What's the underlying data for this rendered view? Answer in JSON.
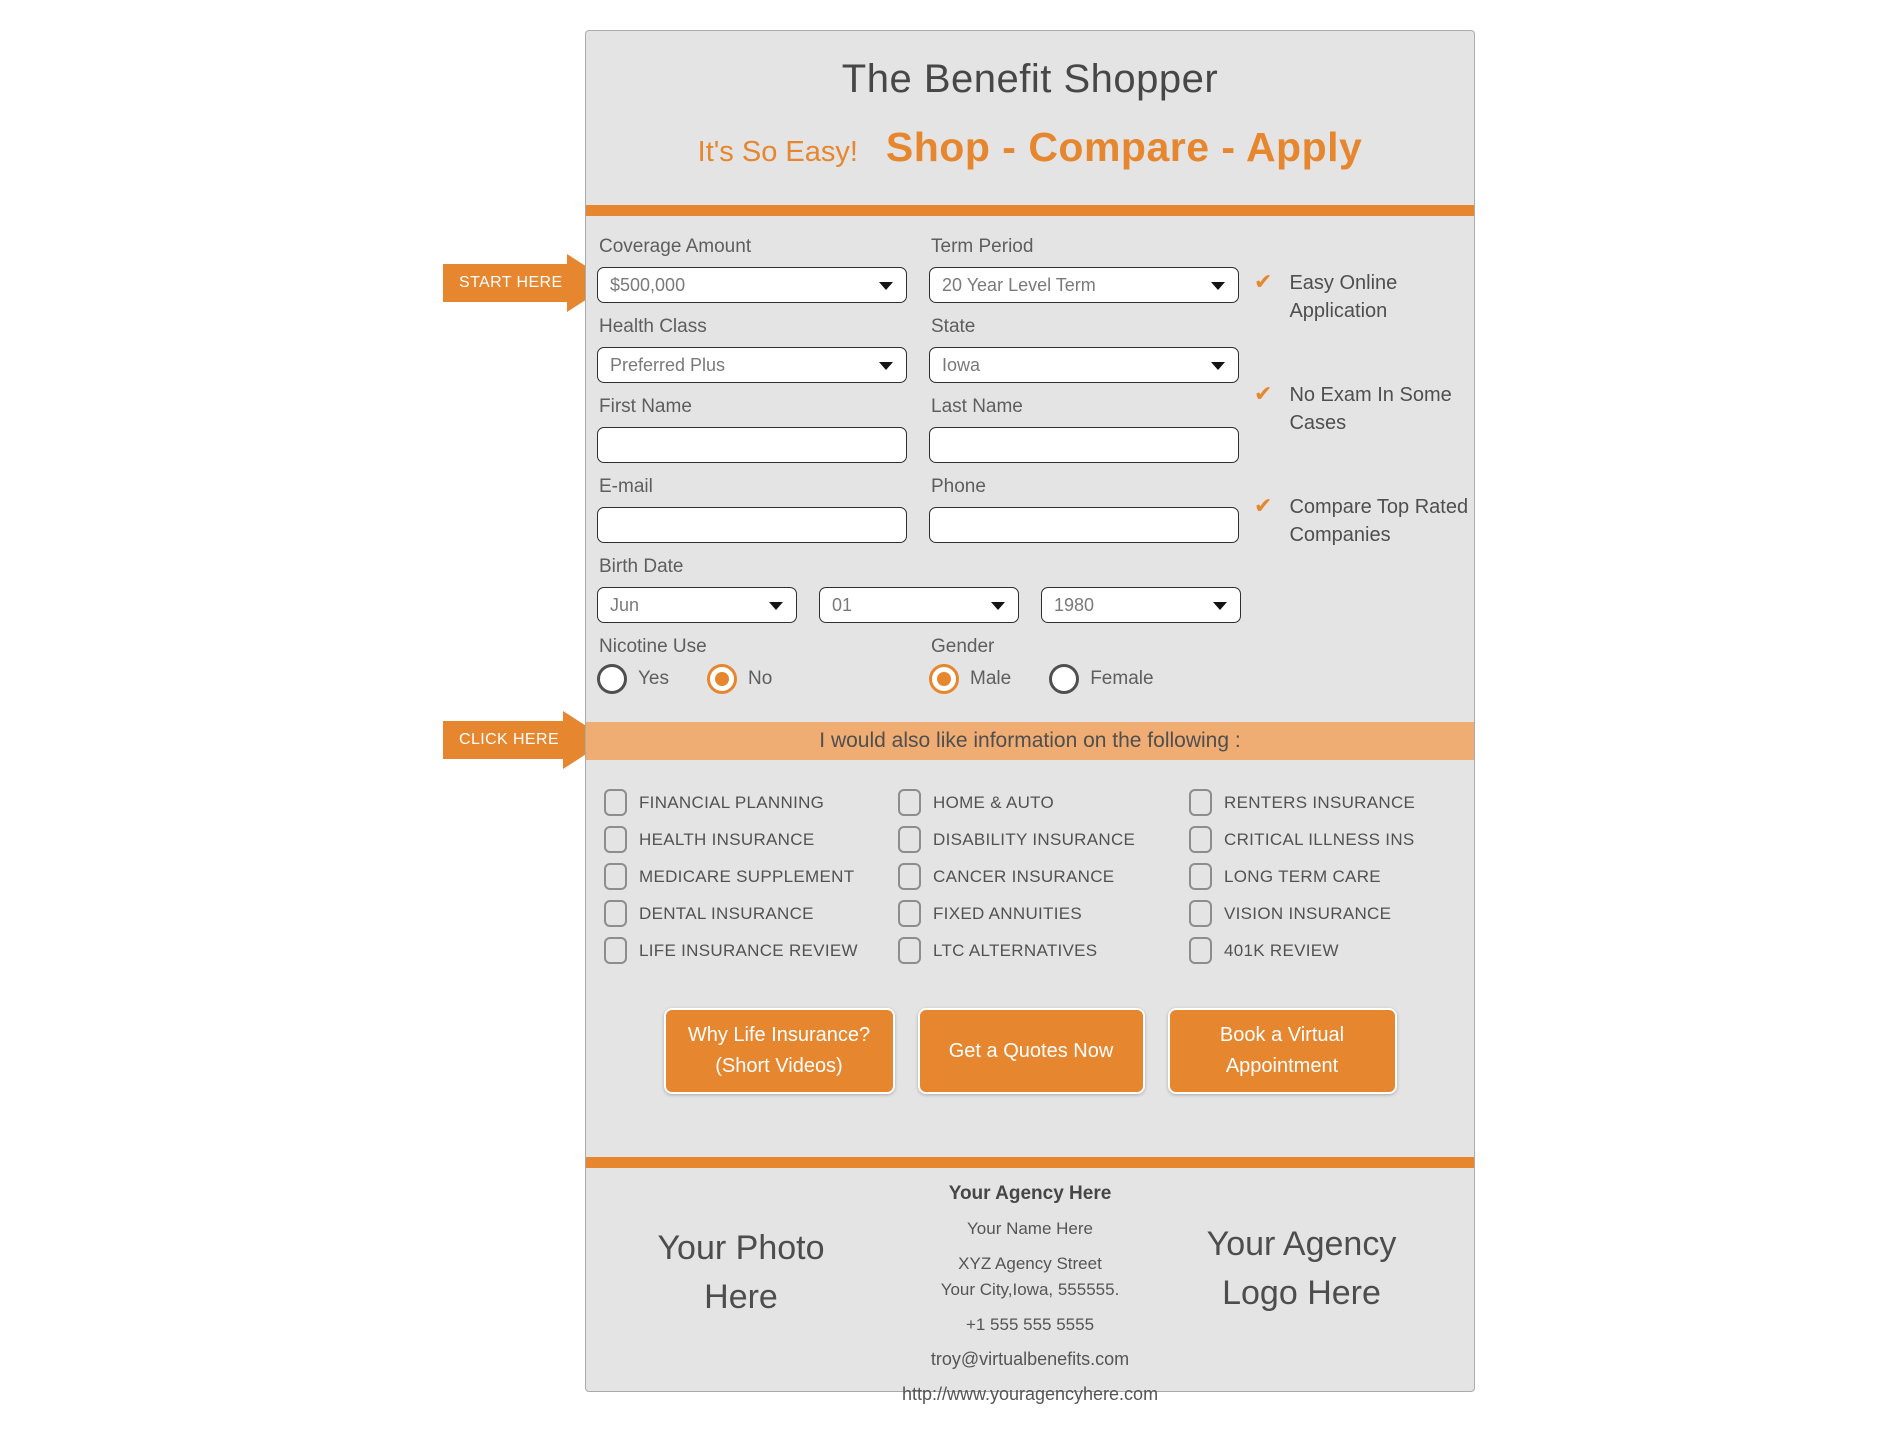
{
  "header": {
    "title": "The Benefit Shopper",
    "tagline_left": "It's So Easy!",
    "tagline_right": "Shop - Compare - Apply"
  },
  "arrows": {
    "start": "START HERE",
    "click": "CLICK HERE"
  },
  "form": {
    "coverage": {
      "label": "Coverage Amount",
      "value": "$500,000"
    },
    "term": {
      "label": "Term Period",
      "value": "20 Year Level Term"
    },
    "health": {
      "label": "Health Class",
      "value": "Preferred Plus"
    },
    "state": {
      "label": "State",
      "value": "Iowa"
    },
    "first_name": {
      "label": "First Name",
      "value": ""
    },
    "last_name": {
      "label": "Last Name",
      "value": ""
    },
    "email": {
      "label": "E-mail",
      "value": ""
    },
    "phone": {
      "label": "Phone",
      "value": ""
    },
    "birth_date": {
      "label": "Birth Date",
      "month": "Jun",
      "day": "01",
      "year": "1980"
    },
    "nicotine": {
      "label": "Nicotine Use",
      "yes": "Yes",
      "no": "No",
      "selected": "No"
    },
    "gender": {
      "label": "Gender",
      "male": "Male",
      "female": "Female",
      "selected": "Male"
    }
  },
  "benefits": [
    "Easy Online\nApplication",
    "No Exam In Some\nCases",
    "Compare Top Rated\nCompanies"
  ],
  "interests": {
    "banner": "I would also like information on the following :",
    "columns": [
      [
        "FINANCIAL PLANNING",
        "HEALTH INSURANCE",
        "MEDICARE SUPPLEMENT",
        "DENTAL INSURANCE",
        "LIFE INSURANCE REVIEW"
      ],
      [
        "HOME & AUTO",
        "DISABILITY INSURANCE",
        "CANCER INSURANCE",
        "FIXED ANNUITIES",
        "LTC ALTERNATIVES"
      ],
      [
        "RENTERS INSURANCE",
        "CRITICAL ILLNESS INS",
        "LONG TERM CARE",
        "VISION INSURANCE",
        "401K REVIEW"
      ]
    ]
  },
  "buttons": [
    "Why Life Insurance?\n(Short Videos)",
    "Get a Quotes Now",
    "Book a Virtual\nAppointment"
  ],
  "footer": {
    "photo_placeholder": "Your Photo\nHere",
    "agency": "Your Agency Here",
    "name": "Your Name Here",
    "street": "XYZ Agency Street",
    "city": "Your City,Iowa, 555555.",
    "phone": "+1 555 555 5555",
    "email": "troy@virtualbenefits.com",
    "website": "http://www.youragencyhere.com",
    "logo_placeholder": "Your Agency\nLogo Here"
  },
  "colors": {
    "orange": "#e6862e",
    "banner_orange": "#efac73",
    "card_background": "#e4e4e4"
  }
}
